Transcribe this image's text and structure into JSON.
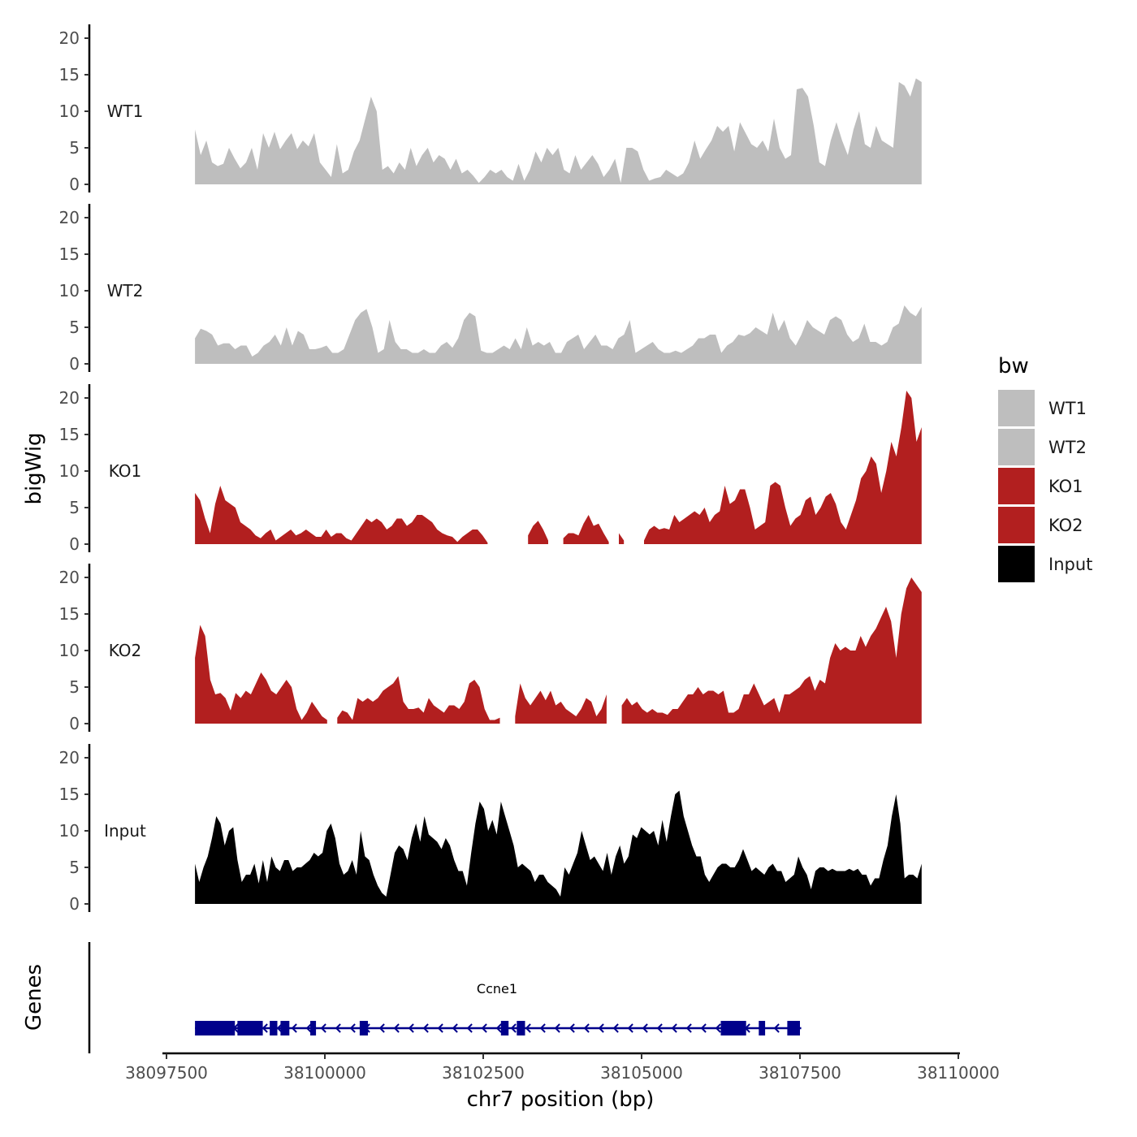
{
  "chart_data": {
    "type": "area",
    "ylabel": "bigWig",
    "xlabel": "chr7 position (bp)",
    "y_ticks": [
      "0",
      "5",
      "10",
      "15",
      "20"
    ],
    "ylim": [
      0,
      22
    ],
    "xlim": [
      38097400,
      38110100
    ],
    "x_ticks": [
      38097500,
      38100000,
      38102500,
      38105000,
      38107500,
      38110000
    ],
    "x_tick_labels": [
      "38097500",
      "38100000",
      "38102500",
      "38105000",
      "38107500",
      "38110000"
    ],
    "legend": {
      "title": "bw",
      "position": "right",
      "entries": [
        {
          "label": "WT1",
          "color": "#bebebe"
        },
        {
          "label": "WT2",
          "color": "#bebebe"
        },
        {
          "label": "KO1",
          "color": "#b21f1f"
        },
        {
          "label": "KO2",
          "color": "#b21f1f"
        },
        {
          "label": "Input",
          "color": "#000000"
        }
      ]
    },
    "series": [
      {
        "name": "WT1",
        "color": "#bebebe",
        "x_start": 38097950,
        "x_end": 38109420,
        "values": [
          7.5,
          4,
          6,
          3,
          2.5,
          2.8,
          5,
          3.5,
          2.2,
          3,
          5,
          2,
          7,
          5,
          7.2,
          4.8,
          6,
          7,
          4.8,
          6,
          5.2,
          7,
          3,
          2,
          1,
          5.5,
          1.5,
          2,
          4.5,
          6,
          9,
          12,
          10,
          2,
          2.5,
          1.5,
          3,
          2,
          5,
          2.5,
          4,
          5,
          3,
          4,
          3.5,
          2,
          3.5,
          1.5,
          2,
          1.2,
          0.2,
          1,
          2,
          1.5,
          2,
          1,
          0.5,
          2.8,
          0.5,
          2,
          4.5,
          3,
          5,
          4,
          5,
          2,
          1.5,
          4,
          2,
          3,
          4,
          2.8,
          1,
          2,
          3.5,
          0.2,
          5,
          5,
          4.5,
          2,
          0.5,
          0.8,
          1,
          2,
          1.5,
          1,
          1.5,
          3,
          6,
          3.5,
          4.8,
          6,
          8,
          7.2,
          8,
          4.5,
          8.5,
          7,
          5.5,
          5,
          6,
          4.5,
          9,
          5,
          3.5,
          4,
          13,
          13.2,
          12,
          8,
          3,
          2.5,
          6,
          8.5,
          6,
          4,
          7.5,
          10,
          5.5,
          5,
          8,
          6,
          5.5,
          5,
          14,
          13.5,
          12,
          14.5,
          14
        ]
      },
      {
        "name": "WT2",
        "color": "#bebebe",
        "x_start": 38097950,
        "x_end": 38109420,
        "values": [
          3.5,
          4.8,
          4.5,
          4,
          2.5,
          2.8,
          2.8,
          2,
          2.5,
          2.5,
          1,
          1.5,
          2.5,
          3,
          4,
          2.5,
          5,
          2.5,
          4.5,
          4,
          2,
          2,
          2.2,
          2.5,
          1.5,
          1.5,
          2,
          4,
          6,
          7,
          7.5,
          5,
          1.5,
          2,
          6,
          3,
          2,
          2,
          1.5,
          1.5,
          2,
          1.5,
          1.5,
          2.5,
          3,
          2.2,
          3.5,
          6,
          7,
          6.5,
          1.8,
          1.5,
          1.5,
          2,
          2.5,
          2,
          3.5,
          2,
          5,
          2.5,
          3,
          2.5,
          3,
          1.5,
          1.5,
          3,
          3.5,
          4,
          2,
          3,
          4,
          2.5,
          2.5,
          2,
          3.5,
          4,
          6,
          1.5,
          2,
          2.5,
          3,
          2,
          1.5,
          1.5,
          1.8,
          1.5,
          2,
          2.5,
          3.5,
          3.5,
          4,
          4,
          1.5,
          2.5,
          3,
          4,
          3.8,
          4.2,
          5,
          4.5,
          4,
          7,
          4.5,
          6,
          3.5,
          2.5,
          4,
          6,
          5,
          4.5,
          4,
          6,
          6.5,
          6,
          4,
          3,
          3.5,
          5.5,
          3,
          3,
          2.5,
          3,
          5,
          5.5,
          8,
          7,
          6.5,
          7.8
        ]
      },
      {
        "name": "KO1",
        "color": "#b21f1f",
        "x_start": 38097950,
        "x_end": 38109420,
        "values": [
          7,
          6,
          3.5,
          1.5,
          5.5,
          8,
          6,
          5.5,
          5,
          3,
          2.5,
          2,
          1.2,
          0.8,
          1.5,
          2,
          0.5,
          1,
          1.5,
          2,
          1.2,
          1.5,
          2,
          1.5,
          1,
          1,
          2,
          1,
          1.5,
          1.5,
          0.8,
          0.5,
          1.5,
          2.5,
          3.5,
          3,
          3.5,
          3,
          2,
          2.5,
          3.5,
          3.5,
          2.5,
          3,
          4,
          4,
          3.5,
          3,
          2,
          1.5,
          1.2,
          1,
          0.3,
          1,
          1.5,
          2,
          2,
          1.2,
          0.2,
          null,
          null,
          null,
          null,
          null,
          null,
          null,
          1.2,
          2.5,
          3.2,
          2,
          0.5,
          null,
          null,
          0.8,
          1.5,
          1.5,
          1.2,
          2.8,
          4,
          2.5,
          2.8,
          1.5,
          0.3,
          null,
          1.5,
          0.5,
          null,
          null,
          null,
          0.5,
          2,
          2.5,
          2,
          2.2,
          2,
          4,
          3,
          3.5,
          4,
          4.5,
          4,
          5,
          3,
          4,
          4.5,
          8,
          5.5,
          6,
          7.5,
          7.5,
          5,
          2,
          2.5,
          3,
          8,
          8.5,
          8,
          5,
          2.5,
          3.5,
          4,
          6,
          6.5,
          4,
          5,
          6.5,
          7,
          5.5,
          3,
          2,
          4,
          6,
          9,
          10,
          12,
          11,
          7,
          10,
          14,
          12,
          16,
          21,
          20,
          14,
          16
        ]
      },
      {
        "name": "KO2",
        "color": "#b21f1f",
        "x_start": 38097950,
        "x_end": 38109420,
        "values": [
          9,
          13.5,
          12,
          6,
          4,
          4.2,
          3.5,
          1.8,
          4.2,
          3.5,
          4.5,
          4,
          5.5,
          7,
          6,
          4.5,
          4,
          5,
          6,
          5,
          2,
          0.5,
          1.5,
          3,
          2,
          1,
          0.5,
          null,
          0.8,
          1.8,
          1.5,
          0.5,
          3.5,
          3,
          3.5,
          3,
          3.5,
          4.5,
          5,
          5.5,
          6.5,
          3,
          2,
          2,
          2.2,
          1.5,
          3.5,
          2.5,
          2,
          1.5,
          2.5,
          2.5,
          2,
          3,
          5.5,
          6,
          5,
          2,
          0.5,
          0.5,
          0.8,
          null,
          null,
          1,
          5.5,
          3.5,
          2.5,
          3.5,
          4.5,
          3.2,
          4.5,
          2.5,
          3,
          2,
          1.5,
          1,
          2,
          3.5,
          3,
          1,
          2,
          4,
          null,
          null,
          2.5,
          3.5,
          2.5,
          3,
          2,
          1.5,
          2,
          1.5,
          1.5,
          1.2,
          2,
          2,
          3,
          4,
          4,
          5,
          4,
          4.5,
          4.5,
          4,
          4.5,
          1.5,
          1.5,
          2,
          4,
          4,
          5.5,
          4,
          2.5,
          3,
          3.5,
          1.5,
          4,
          4,
          4.5,
          5,
          6,
          6.5,
          4.5,
          6,
          5.5,
          9,
          11,
          10,
          10.5,
          10,
          10,
          12,
          10.5,
          12,
          13,
          14.5,
          16,
          14,
          9,
          15,
          18.5,
          20,
          19,
          18
        ]
      },
      {
        "name": "Input",
        "color": "#000000",
        "x_start": 38097950,
        "x_end": 38109420,
        "values": [
          5.5,
          3,
          5,
          6.5,
          9,
          12,
          11,
          8,
          10,
          10.5,
          6,
          3,
          4,
          4,
          5.5,
          2.8,
          6,
          3,
          6.5,
          5,
          4.5,
          6,
          6,
          4.5,
          5,
          5,
          5.5,
          6,
          7,
          6.5,
          7,
          10,
          11,
          9,
          5.5,
          4,
          4.5,
          6,
          4,
          10,
          6.5,
          6,
          4,
          2.5,
          1.5,
          1,
          4,
          7,
          8,
          7.5,
          6,
          9,
          11,
          8.5,
          12,
          9.5,
          9,
          8.5,
          7.5,
          9,
          8,
          6,
          4.5,
          4.5,
          2.5,
          7,
          11,
          14,
          13,
          10,
          11.5,
          9.5,
          14,
          12,
          10,
          8,
          5,
          5.5,
          5,
          4.5,
          3,
          4,
          4,
          3,
          2.5,
          2,
          1,
          5,
          4,
          5.5,
          7,
          10,
          8,
          6,
          6.5,
          5.5,
          4.5,
          7,
          4,
          6.5,
          8,
          5.5,
          6.5,
          9.5,
          9,
          10.5,
          10,
          9.5,
          10,
          8,
          11.5,
          8.5,
          12,
          15,
          15.5,
          12,
          10,
          8,
          6.5,
          6.5,
          4,
          3,
          4,
          5,
          5.5,
          5.5,
          5,
          5,
          6,
          7.5,
          6,
          4.5,
          5,
          4.5,
          4,
          5,
          5.5,
          4.5,
          4.5,
          3,
          3.5,
          4,
          6.5,
          5,
          4,
          2,
          4.5,
          5,
          5,
          4.5,
          4.8,
          4.5,
          4.5,
          4.5,
          4.8,
          4.5,
          4.8,
          4,
          4,
          2.5,
          3.5,
          3.5,
          6,
          8,
          12,
          15,
          11,
          3.5,
          4,
          4,
          3.5,
          5.5
        ]
      }
    ],
    "genes": [
      {
        "name": "Ccne1",
        "strand": "-",
        "start": 38097950,
        "end": 38107520,
        "exons": [
          [
            38097950,
            38098580
          ],
          [
            38098620,
            38099020
          ],
          [
            38099130,
            38099250
          ],
          [
            38099300,
            38099440
          ],
          [
            38099770,
            38099860
          ],
          [
            38100550,
            38100680
          ],
          [
            38102780,
            38102900
          ],
          [
            38103030,
            38103160
          ],
          [
            38106250,
            38106650
          ],
          [
            38106850,
            38106950
          ],
          [
            38107300,
            38107500
          ]
        ]
      }
    ]
  }
}
